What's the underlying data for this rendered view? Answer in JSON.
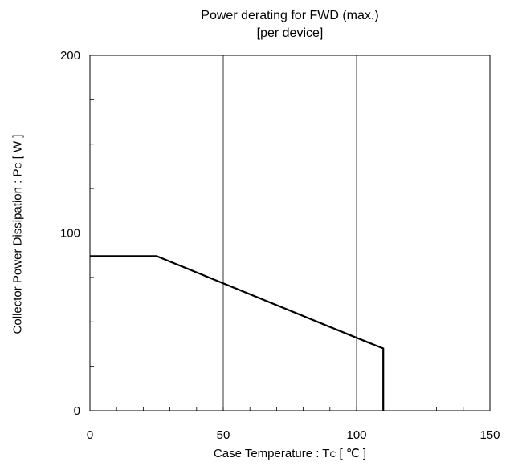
{
  "chart_data": {
    "type": "line",
    "title": "Power derating for FWD (max.)",
    "subtitle": "[per device]",
    "xlabel": {
      "main": "Case Temperature  :  T",
      "sub": "C",
      "unit": " [ ℃ ]"
    },
    "ylabel": {
      "main": "Collector Power Dissipation : P",
      "sub": "C",
      "unit": " [ W ]"
    },
    "xlim": [
      0,
      150
    ],
    "ylim": [
      0,
      200
    ],
    "x_ticks": [
      0,
      50,
      100,
      150
    ],
    "y_ticks": [
      0,
      100,
      200
    ],
    "x_minor_step": 10,
    "y_minor_step": 25,
    "grid": true,
    "series": [
      {
        "x": [
          0,
          25,
          100,
          110,
          110
        ],
        "y": [
          87,
          87,
          41,
          35,
          0
        ],
        "color": "#000000"
      }
    ]
  }
}
